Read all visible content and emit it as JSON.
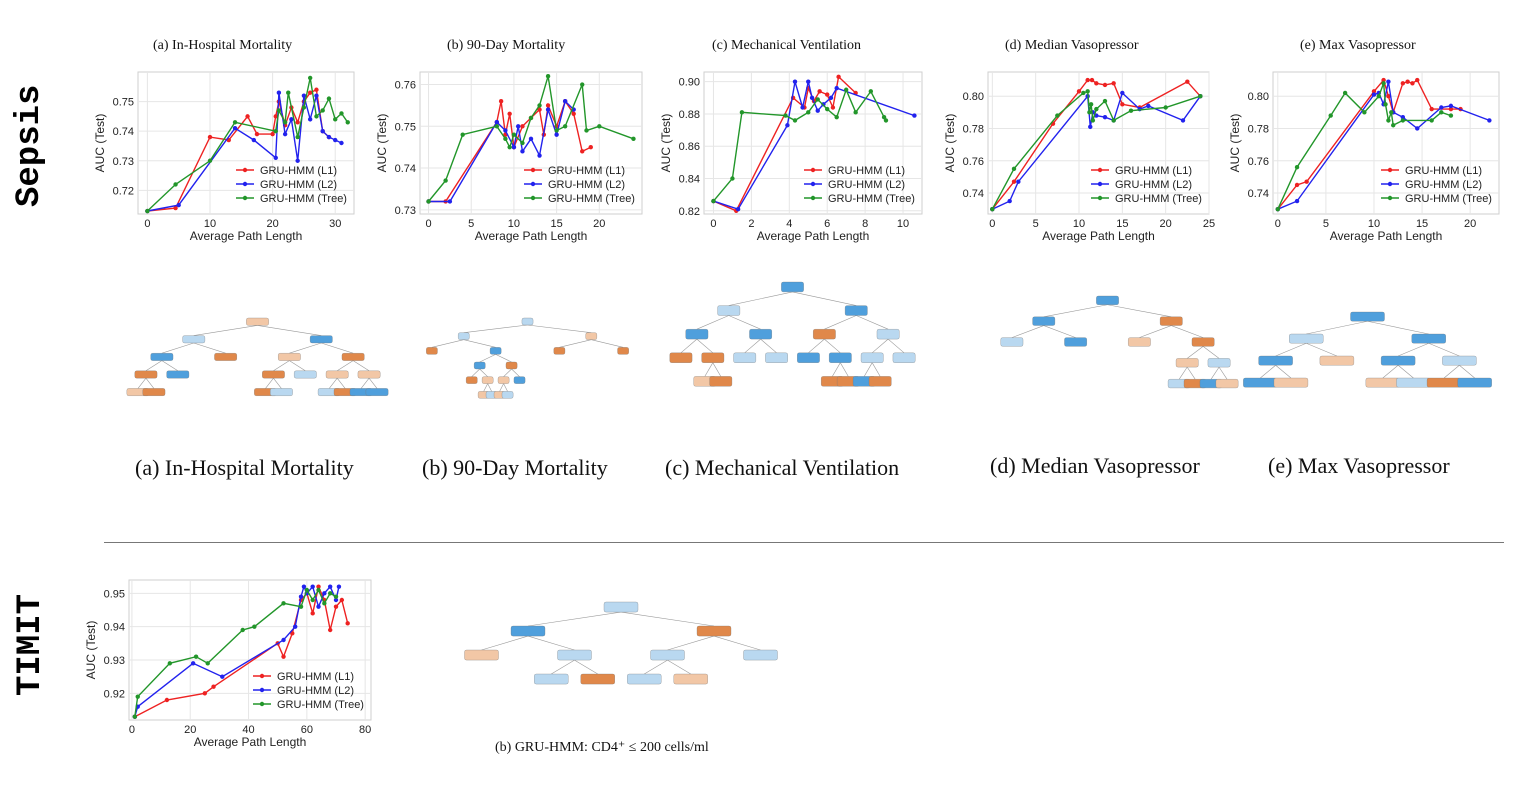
{
  "row_labels": {
    "sepsis": "Sepsis",
    "timit": "TIMIT"
  },
  "plot_titles": [
    "(a) In-Hospital Mortality",
    "(b) 90-Day Mortality",
    "(c) Mechanical Ventilation",
    "(d) Median Vasopressor",
    "(e) Max Vasopressor"
  ],
  "tree_captions": [
    "(a) In-Hospital Mortality",
    "(b) 90-Day Mortality",
    "(c) Mechanical Ventilation",
    "(d) Median Vasopressor",
    "(e) Max Vasopressor"
  ],
  "timit_tree_caption": "(b) GRU-HMM: CD4⁺ ≤ 200 cells/ml",
  "colors": {
    "l1": "#ee2222",
    "l2": "#2222ee",
    "tree": "#22962a",
    "orange_node": "#e0884a",
    "light_orange_node": "#f2c7a6",
    "blue_node": "#4f9fdc",
    "light_blue_node": "#b9d8f0"
  },
  "chart_data": [
    {
      "type": "line",
      "title": "(a) In-Hospital Mortality",
      "xlabel": "Average Path Length",
      "ylabel": "AUC (Test)",
      "xlim": [
        -1.5,
        33
      ],
      "ylim": [
        0.712,
        0.76
      ],
      "xticks": [
        0,
        10,
        20,
        30
      ],
      "yticks": [
        0.72,
        0.73,
        0.74,
        0.75
      ],
      "ytick_labels": [
        "0.72",
        "0.73",
        "0.74",
        "0.75"
      ],
      "series": [
        {
          "name": "GRU-HMM (L1)",
          "key": "l1",
          "x": [
            0,
            4.5,
            10,
            13,
            16,
            17.5,
            20,
            20.5,
            21,
            22,
            23,
            24,
            25,
            26,
            27,
            28,
            29
          ],
          "y": [
            0.713,
            0.714,
            0.738,
            0.737,
            0.745,
            0.739,
            0.739,
            0.745,
            0.75,
            0.742,
            0.748,
            0.743,
            0.75,
            0.753,
            0.754,
            0.74,
            0.738
          ]
        },
        {
          "name": "GRU-HMM (L2)",
          "key": "l2",
          "x": [
            0,
            5,
            14,
            17,
            20.5,
            21,
            22,
            23,
            24,
            25,
            26,
            27,
            28,
            29,
            30,
            31
          ],
          "y": [
            0.713,
            0.715,
            0.741,
            0.737,
            0.731,
            0.753,
            0.739,
            0.744,
            0.73,
            0.752,
            0.744,
            0.752,
            0.74,
            0.738,
            0.737,
            0.736
          ]
        },
        {
          "name": "GRU-HMM (Tree)",
          "key": "tree",
          "x": [
            0,
            4.5,
            10,
            14,
            20.5,
            21,
            22,
            22.5,
            24,
            25,
            26,
            27,
            28,
            29,
            30,
            31,
            32
          ],
          "y": [
            0.713,
            0.722,
            0.73,
            0.743,
            0.74,
            0.747,
            0.743,
            0.753,
            0.738,
            0.748,
            0.758,
            0.745,
            0.747,
            0.751,
            0.744,
            0.746,
            0.743
          ]
        }
      ],
      "legend": "bottom-right"
    },
    {
      "type": "line",
      "title": "(b) 90-Day Mortality",
      "xlabel": "Average Path Length",
      "ylabel": "AUC (Test)",
      "xlim": [
        -1,
        25
      ],
      "ylim": [
        0.729,
        0.763
      ],
      "xticks": [
        0,
        5,
        10,
        15,
        20
      ],
      "yticks": [
        0.73,
        0.74,
        0.75,
        0.76
      ],
      "ytick_labels": [
        "0.73",
        "0.74",
        "0.75",
        "0.76"
      ],
      "series": [
        {
          "name": "GRU-HMM (L1)",
          "key": "l1",
          "x": [
            0,
            2,
            8,
            8.5,
            9,
            9.5,
            10,
            11,
            12,
            13,
            13.5,
            14,
            15,
            16,
            17,
            18,
            19
          ],
          "y": [
            0.732,
            0.732,
            0.751,
            0.756,
            0.748,
            0.753,
            0.745,
            0.75,
            0.752,
            0.754,
            0.748,
            0.755,
            0.75,
            0.756,
            0.753,
            0.744,
            0.745
          ]
        },
        {
          "name": "GRU-HMM (L2)",
          "key": "l2",
          "x": [
            0,
            2.5,
            8,
            9,
            10,
            10.5,
            11,
            12,
            13,
            14,
            15,
            16,
            17
          ],
          "y": [
            0.732,
            0.732,
            0.751,
            0.749,
            0.745,
            0.75,
            0.744,
            0.747,
            0.743,
            0.754,
            0.748,
            0.756,
            0.754
          ]
        },
        {
          "name": "GRU-HMM (Tree)",
          "key": "tree",
          "x": [
            0,
            2,
            4,
            8,
            9,
            9.5,
            10,
            11,
            12,
            13,
            14,
            15,
            16,
            18,
            18.5,
            20,
            24
          ],
          "y": [
            0.732,
            0.737,
            0.748,
            0.75,
            0.747,
            0.745,
            0.748,
            0.746,
            0.752,
            0.755,
            0.762,
            0.749,
            0.75,
            0.76,
            0.749,
            0.75,
            0.747
          ]
        }
      ],
      "legend": "bottom-right"
    },
    {
      "type": "line",
      "title": "(c) Mechanical Ventilation",
      "xlabel": "Average Path Length",
      "ylabel": "AUC (Test)",
      "xlim": [
        -0.5,
        11
      ],
      "ylim": [
        0.818,
        0.906
      ],
      "xticks": [
        0,
        2,
        4,
        6,
        8,
        10
      ],
      "yticks": [
        0.82,
        0.84,
        0.86,
        0.88,
        0.9
      ],
      "ytick_labels": [
        "0.82",
        "0.84",
        "0.86",
        "0.88",
        "0.90"
      ],
      "series": [
        {
          "name": "GRU-HMM (L1)",
          "key": "l1",
          "x": [
            0,
            1.2,
            4.2,
            4.8,
            5,
            5.3,
            5.6,
            6,
            6.3,
            6.6,
            7.5
          ],
          "y": [
            0.826,
            0.82,
            0.89,
            0.884,
            0.896,
            0.888,
            0.894,
            0.892,
            0.884,
            0.903,
            0.893
          ]
        },
        {
          "name": "GRU-HMM (L2)",
          "key": "l2",
          "x": [
            0,
            1.3,
            3.9,
            4.3,
            4.7,
            5,
            5.2,
            5.5,
            5.8,
            6.2,
            6.5,
            10.6
          ],
          "y": [
            0.826,
            0.821,
            0.873,
            0.9,
            0.884,
            0.9,
            0.89,
            0.882,
            0.886,
            0.89,
            0.896,
            0.879
          ]
        },
        {
          "name": "GRU-HMM (Tree)",
          "key": "tree",
          "x": [
            0,
            1,
            1.5,
            3.8,
            4.3,
            5,
            5.5,
            6,
            6.5,
            7,
            7.5,
            8.3,
            9,
            9.1
          ],
          "y": [
            0.826,
            0.84,
            0.881,
            0.879,
            0.876,
            0.881,
            0.889,
            0.883,
            0.878,
            0.895,
            0.881,
            0.894,
            0.878,
            0.876
          ]
        }
      ],
      "legend": "bottom-right"
    },
    {
      "type": "line",
      "title": "(d) Median Vasopressor",
      "xlabel": "Average Path Length",
      "ylabel": "AUC (Test)",
      "xlim": [
        -0.5,
        25
      ],
      "ylim": [
        0.727,
        0.815
      ],
      "xticks": [
        0,
        5,
        10,
        15,
        20,
        25
      ],
      "yticks": [
        0.74,
        0.76,
        0.78,
        0.8
      ],
      "ytick_labels": [
        "0.74",
        "0.76",
        "0.78",
        "0.80"
      ],
      "series": [
        {
          "name": "GRU-HMM (L1)",
          "key": "l1",
          "x": [
            0,
            2.5,
            7,
            10,
            11,
            11.5,
            12,
            13,
            14,
            15,
            17,
            22.5,
            24
          ],
          "y": [
            0.73,
            0.747,
            0.783,
            0.803,
            0.81,
            0.81,
            0.808,
            0.807,
            0.808,
            0.795,
            0.793,
            0.809,
            0.8
          ]
        },
        {
          "name": "GRU-HMM (L2)",
          "key": "l2",
          "x": [
            0,
            2,
            3,
            11,
            11.3,
            11.6,
            12,
            13,
            14,
            15,
            17,
            18,
            22,
            24
          ],
          "y": [
            0.73,
            0.735,
            0.747,
            0.8,
            0.781,
            0.79,
            0.788,
            0.787,
            0.785,
            0.802,
            0.792,
            0.794,
            0.785,
            0.8
          ]
        },
        {
          "name": "GRU-HMM (Tree)",
          "key": "tree",
          "x": [
            0,
            2.5,
            7.5,
            10.5,
            11,
            11.2,
            11.4,
            11.6,
            12,
            13,
            14,
            16,
            20,
            24
          ],
          "y": [
            0.73,
            0.755,
            0.788,
            0.802,
            0.803,
            0.79,
            0.795,
            0.785,
            0.792,
            0.797,
            0.785,
            0.791,
            0.793,
            0.8
          ]
        }
      ],
      "legend": "bottom-right"
    },
    {
      "type": "line",
      "title": "(e) Max Vasopressor",
      "xlabel": "Average Path Length",
      "ylabel": "AUC (Test)",
      "xlim": [
        -0.5,
        23
      ],
      "ylim": [
        0.727,
        0.815
      ],
      "xticks": [
        0,
        5,
        10,
        15,
        20
      ],
      "yticks": [
        0.74,
        0.76,
        0.78,
        0.8
      ],
      "ytick_labels": [
        "0.74",
        "0.76",
        "0.78",
        "0.80"
      ],
      "series": [
        {
          "name": "GRU-HMM (L1)",
          "key": "l1",
          "x": [
            0,
            2,
            3,
            10,
            11,
            11.5,
            12,
            13,
            13.5,
            14,
            14.5,
            16,
            18,
            19
          ],
          "y": [
            0.73,
            0.745,
            0.747,
            0.803,
            0.81,
            0.8,
            0.79,
            0.808,
            0.809,
            0.808,
            0.81,
            0.792,
            0.792,
            0.792
          ]
        },
        {
          "name": "GRU-HMM (L2)",
          "key": "l2",
          "x": [
            0,
            2,
            10,
            10.5,
            11,
            11.5,
            12,
            13,
            14.5,
            17,
            18,
            22
          ],
          "y": [
            0.73,
            0.735,
            0.801,
            0.802,
            0.795,
            0.809,
            0.79,
            0.787,
            0.78,
            0.793,
            0.794,
            0.785
          ]
        },
        {
          "name": "GRU-HMM (Tree)",
          "key": "tree",
          "x": [
            0,
            2,
            5.5,
            7,
            9,
            10.5,
            11,
            11.2,
            11.5,
            11.8,
            12,
            13,
            16,
            17,
            18
          ],
          "y": [
            0.73,
            0.756,
            0.788,
            0.802,
            0.79,
            0.8,
            0.808,
            0.795,
            0.785,
            0.79,
            0.782,
            0.785,
            0.785,
            0.79,
            0.788
          ]
        }
      ],
      "legend": "bottom-right"
    },
    {
      "type": "line",
      "title": "",
      "xlabel": "Average Path Length",
      "ylabel": "AUC (Test)",
      "xlim": [
        -1,
        82
      ],
      "ylim": [
        0.912,
        0.954
      ],
      "xticks": [
        0,
        20,
        40,
        60,
        80
      ],
      "yticks": [
        0.92,
        0.93,
        0.94,
        0.95
      ],
      "ytick_labels": [
        "0.92",
        "0.93",
        "0.94",
        "0.95"
      ],
      "series": [
        {
          "name": "GRU-HMM (L1)",
          "key": "l1",
          "x": [
            1,
            12,
            25,
            28,
            50,
            52,
            55,
            58,
            60,
            62,
            64,
            66,
            68,
            70,
            72,
            74
          ],
          "y": [
            0.913,
            0.918,
            0.92,
            0.922,
            0.935,
            0.931,
            0.938,
            0.948,
            0.95,
            0.944,
            0.952,
            0.948,
            0.939,
            0.946,
            0.948,
            0.941
          ]
        },
        {
          "name": "GRU-HMM (L2)",
          "key": "l2",
          "x": [
            1,
            2,
            21,
            31,
            52,
            56,
            58,
            59,
            60,
            62,
            64,
            66,
            68,
            70,
            71
          ],
          "y": [
            0.913,
            0.916,
            0.929,
            0.925,
            0.936,
            0.94,
            0.949,
            0.952,
            0.95,
            0.952,
            0.946,
            0.95,
            0.952,
            0.948,
            0.952
          ]
        },
        {
          "name": "GRU-HMM (Tree)",
          "key": "tree",
          "x": [
            1,
            2,
            13,
            22,
            26,
            38,
            42,
            52,
            58,
            60,
            62,
            64,
            66,
            68,
            70
          ],
          "y": [
            0.913,
            0.919,
            0.929,
            0.931,
            0.929,
            0.939,
            0.94,
            0.947,
            0.946,
            0.951,
            0.948,
            0.951,
            0.947,
            0.95,
            0.949
          ]
        }
      ],
      "legend": "bottom-right"
    }
  ]
}
